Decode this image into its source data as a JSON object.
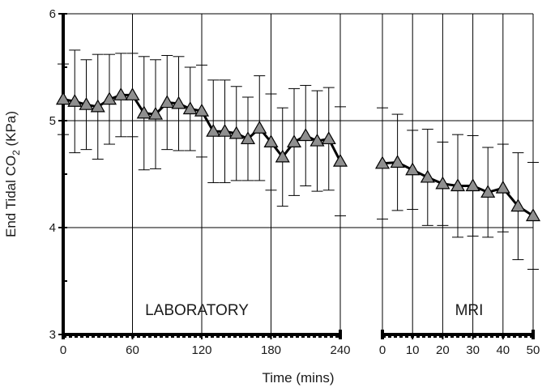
{
  "chart_data": {
    "type": "line",
    "ylabel": {
      "prefix": "End Tidal CO",
      "sub": "2",
      "suffix": " (KPa)"
    },
    "xlabel": "Time (mins)",
    "ylim": [
      3,
      6
    ],
    "yticks": [
      3,
      4,
      5,
      6
    ],
    "grid": true,
    "marker": "triangle",
    "marker_color": "#8f8f8f",
    "panels": [
      {
        "label": "LABORATORY",
        "xlim": [
          0,
          240
        ],
        "xticks": [
          0,
          60,
          120,
          180,
          240
        ],
        "vgrid": [
          60,
          120,
          180,
          240
        ],
        "points": [
          {
            "x": 0,
            "y": 5.2,
            "err": 0.33
          },
          {
            "x": 10,
            "y": 5.18,
            "err": 0.48
          },
          {
            "x": 20,
            "y": 5.15,
            "err": 0.42
          },
          {
            "x": 30,
            "y": 5.13,
            "err": 0.49
          },
          {
            "x": 40,
            "y": 5.2,
            "err": 0.42
          },
          {
            "x": 50,
            "y": 5.24,
            "err": 0.39
          },
          {
            "x": 60,
            "y": 5.24,
            "err": 0.39
          },
          {
            "x": 70,
            "y": 5.07,
            "err": 0.53
          },
          {
            "x": 80,
            "y": 5.06,
            "err": 0.51
          },
          {
            "x": 90,
            "y": 5.17,
            "err": 0.44
          },
          {
            "x": 100,
            "y": 5.16,
            "err": 0.44
          },
          {
            "x": 110,
            "y": 5.11,
            "err": 0.39
          },
          {
            "x": 120,
            "y": 5.09,
            "err": 0.43
          },
          {
            "x": 130,
            "y": 4.9,
            "err": 0.48
          },
          {
            "x": 140,
            "y": 4.9,
            "err": 0.48
          },
          {
            "x": 150,
            "y": 4.88,
            "err": 0.44
          },
          {
            "x": 160,
            "y": 4.83,
            "err": 0.39
          },
          {
            "x": 170,
            "y": 4.93,
            "err": 0.49
          },
          {
            "x": 180,
            "y": 4.8,
            "err": 0.45
          },
          {
            "x": 190,
            "y": 4.66,
            "err": 0.46
          },
          {
            "x": 200,
            "y": 4.8,
            "err": 0.5
          },
          {
            "x": 210,
            "y": 4.86,
            "err": 0.47
          },
          {
            "x": 220,
            "y": 4.81,
            "err": 0.47
          },
          {
            "x": 230,
            "y": 4.83,
            "err": 0.48
          },
          {
            "x": 240,
            "y": 4.62,
            "err": 0.51
          }
        ]
      },
      {
        "label": "MRI",
        "xlim": [
          0,
          50
        ],
        "xticks": [
          0,
          10,
          20,
          30,
          40,
          50
        ],
        "extra_ticks": [
          5,
          15,
          25,
          35,
          45
        ],
        "vgrid": [
          10,
          20,
          30,
          40,
          50
        ],
        "points": [
          {
            "x": 0,
            "y": 4.6,
            "err": 0.52
          },
          {
            "x": 5,
            "y": 4.61,
            "err": 0.45
          },
          {
            "x": 10,
            "y": 4.54,
            "err": 0.37
          },
          {
            "x": 15,
            "y": 4.47,
            "err": 0.45
          },
          {
            "x": 20,
            "y": 4.41,
            "err": 0.39
          },
          {
            "x": 25,
            "y": 4.39,
            "err": 0.48
          },
          {
            "x": 30,
            "y": 4.39,
            "err": 0.47
          },
          {
            "x": 35,
            "y": 4.33,
            "err": 0.42
          },
          {
            "x": 40,
            "y": 4.37,
            "err": 0.41
          },
          {
            "x": 45,
            "y": 4.2,
            "err": 0.5
          },
          {
            "x": 50,
            "y": 4.11,
            "err": 0.5
          }
        ]
      }
    ]
  }
}
